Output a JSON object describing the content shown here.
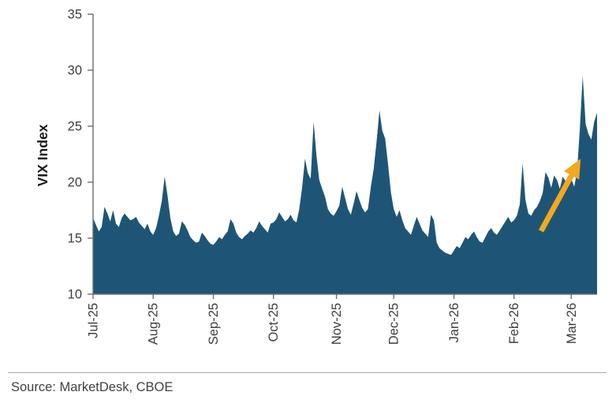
{
  "chart_data": {
    "type": "area",
    "title": "",
    "ylabel": "VIX Index",
    "xlabel": "",
    "ylim": [
      10,
      35
    ],
    "yticks": [
      10,
      15,
      20,
      25,
      30,
      35
    ],
    "categories": [
      "Jul-25",
      "Aug-25",
      "Sep-25",
      "Oct-25",
      "Nov-25",
      "Dec-25",
      "Jan-26",
      "Feb-26",
      "Mar-26"
    ],
    "month_start_indices": [
      0,
      21,
      42,
      63,
      85,
      105,
      126,
      147,
      167
    ],
    "series": [
      {
        "name": "VIX Index",
        "values": [
          16.8,
          16.2,
          15.6,
          16.0,
          17.8,
          17.2,
          16.5,
          17.5,
          16.3,
          16.0,
          16.8,
          17.2,
          16.9,
          16.6,
          16.7,
          16.9,
          16.4,
          16.1,
          15.8,
          16.3,
          15.6,
          15.3,
          15.9,
          17.0,
          18.3,
          20.5,
          18.8,
          16.8,
          15.6,
          15.2,
          15.4,
          16.5,
          16.2,
          15.7,
          15.1,
          14.8,
          14.6,
          14.7,
          15.5,
          15.2,
          14.8,
          14.5,
          14.4,
          14.7,
          15.1,
          14.9,
          15.3,
          15.6,
          16.7,
          16.3,
          15.5,
          15.1,
          14.9,
          15.2,
          15.4,
          15.7,
          15.5,
          15.9,
          16.5,
          16.1,
          15.8,
          15.5,
          16.3,
          16.4,
          16.7,
          17.3,
          16.9,
          16.5,
          16.7,
          17.1,
          16.6,
          16.4,
          17.6,
          19.5,
          22.1,
          20.8,
          20.3,
          25.4,
          22.4,
          20.2,
          19.4,
          18.7,
          17.6,
          17.2,
          17.0,
          17.4,
          17.9,
          19.6,
          18.6,
          17.6,
          17.1,
          18.1,
          19.2,
          18.4,
          17.7,
          17.3,
          17.6,
          19.6,
          21.2,
          23.6,
          26.4,
          24.6,
          23.9,
          21.6,
          19.1,
          17.6,
          16.9,
          17.5,
          16.6,
          15.9,
          15.6,
          15.3,
          16.1,
          16.9,
          16.3,
          15.7,
          15.4,
          15.1,
          17.1,
          16.6,
          14.6,
          14.1,
          13.9,
          13.7,
          13.6,
          13.5,
          13.9,
          14.3,
          14.1,
          14.6,
          15.1,
          14.9,
          15.3,
          15.6,
          15.1,
          14.7,
          14.6,
          15.1,
          15.6,
          15.9,
          15.5,
          15.3,
          15.7,
          16.1,
          16.5,
          16.9,
          16.4,
          16.6,
          17.0,
          18.0,
          21.7,
          18.4,
          17.2,
          17.0,
          17.5,
          17.8,
          18.3,
          19.0,
          20.9,
          20.4,
          19.5,
          20.6,
          20.2,
          19.4,
          20.5,
          20.1,
          19.7,
          20.3,
          19.6,
          20.9,
          24.8,
          29.5,
          25.2,
          24.3,
          23.8,
          25.4,
          26.2
        ]
      }
    ],
    "legend_position": "none",
    "grid": false,
    "annotation": {
      "type": "arrow-up",
      "description": "Gold arrow pointing up-right, highlighting the recent VIX spike near Mar-26"
    }
  },
  "colors": {
    "area": "#1E5577",
    "arrow": "#F4A81D",
    "axis": "#6e6e6e"
  },
  "footer": {
    "source_text": "Source: MarketDesk, CBOE"
  }
}
